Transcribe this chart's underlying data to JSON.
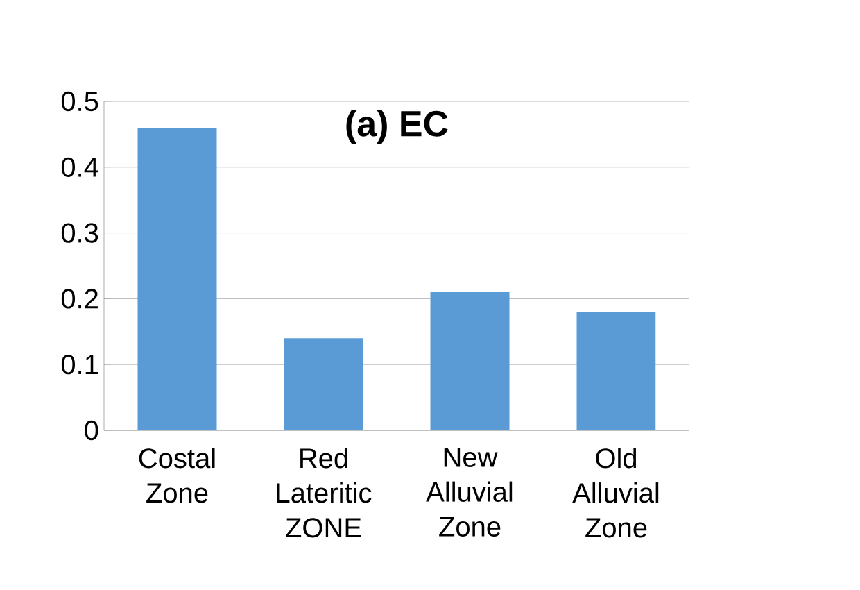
{
  "chart_data": {
    "type": "bar",
    "title": "(a) EC",
    "categories": [
      "Costal Zone",
      "Red Lateritic ZONE",
      "New Alluvial Zone",
      "Old Alluvial Zone"
    ],
    "values": [
      0.46,
      0.14,
      0.21,
      0.18
    ],
    "color": "#5b9bd5",
    "ylim": [
      0,
      0.5
    ],
    "yticks": [
      0,
      0.1,
      0.2,
      0.3,
      0.4,
      0.5
    ],
    "grid": "y"
  }
}
